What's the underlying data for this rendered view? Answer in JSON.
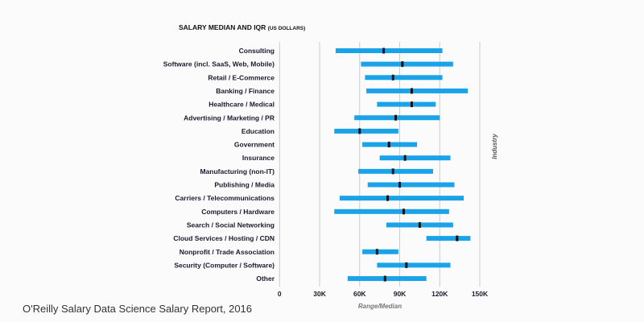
{
  "caption": "O'Reilly Salary Data Science Salary Report, 2016",
  "chart_data": {
    "type": "bar",
    "subtype": "range-with-median",
    "title": "SALARY MEDIAN AND IQR",
    "title_suffix": "(US DOLLARS)",
    "xlabel": "Range/Median",
    "ylabel": "Industry",
    "xlim": [
      0,
      150000
    ],
    "xticks": [
      0,
      30000,
      60000,
      90000,
      120000,
      150000
    ],
    "xtick_labels": [
      "0",
      "30K",
      "60K",
      "90K",
      "120K",
      "150K"
    ],
    "grid": true,
    "colors": {
      "range": "#1aa3e8",
      "median": "#111111",
      "grid": "#cccccc"
    },
    "categories": [
      "Consulting",
      "Software (incl. SaaS, Web, Mobile)",
      "Retail / E-Commerce",
      "Banking / Finance",
      "Healthcare / Medical",
      "Advertising / Marketing / PR",
      "Education",
      "Government",
      "Insurance",
      "Manufacturing (non-IT)",
      "Publishing / Media",
      "Carriers / Telecommunications",
      "Computers / Hardware",
      "Search / Social Networking",
      "Cloud Services / Hosting / CDN",
      "Nonprofit / Trade Association",
      "Security (Computer / Software)",
      "Other"
    ],
    "low": [
      42000,
      61000,
      64000,
      65000,
      73000,
      56000,
      41000,
      62000,
      75000,
      59000,
      66000,
      45000,
      41000,
      80000,
      110000,
      62000,
      73000,
      51000
    ],
    "median": [
      78000,
      92000,
      85000,
      99000,
      99000,
      87000,
      60000,
      82000,
      94000,
      85000,
      90000,
      81000,
      93000,
      105000,
      133000,
      73000,
      95000,
      79000
    ],
    "high": [
      122000,
      130000,
      122000,
      141000,
      117000,
      120000,
      89000,
      103000,
      128000,
      115000,
      131000,
      138000,
      127000,
      130000,
      143000,
      89000,
      128000,
      110000
    ]
  }
}
